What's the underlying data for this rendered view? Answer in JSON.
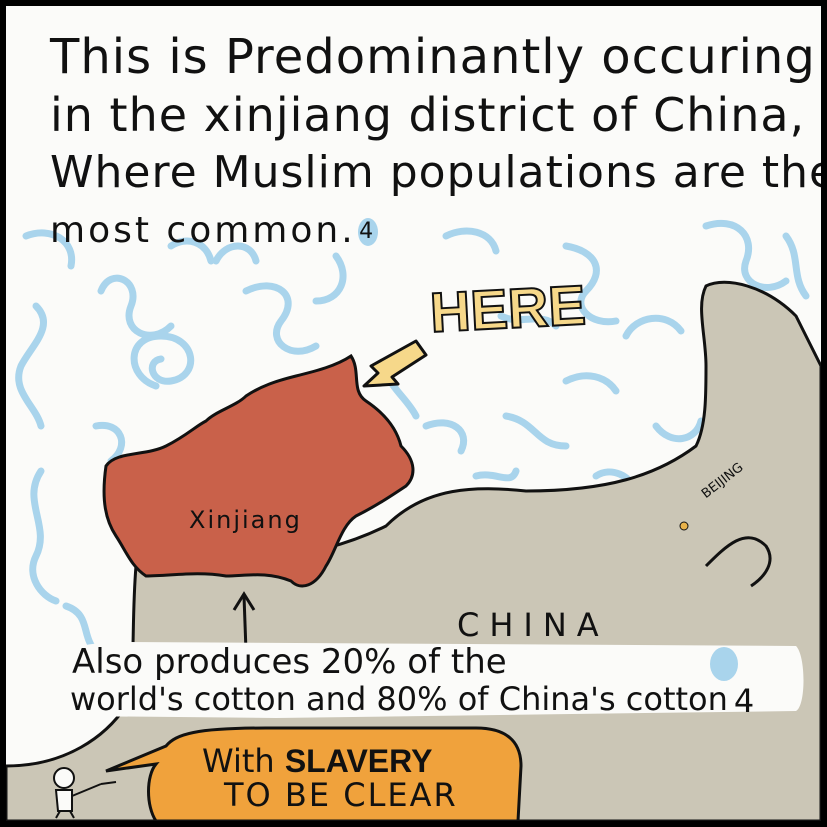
{
  "caption": {
    "line1": "This is Predominantly occuring",
    "line2": "in the xinjiang district of China,",
    "line3": "Where Muslim populations are the",
    "line4": "most common.",
    "footnote": "4"
  },
  "map": {
    "here_label": "HERE",
    "region_label": "Xinjiang",
    "country_label": "CHINA",
    "capital_label": "BEIJING",
    "colors": {
      "region": "#c9614a",
      "country": "#cbc6b6",
      "water_swirls": "#a9d4ec",
      "here_fill": "#f6d88a",
      "banner": "#f0a23c"
    }
  },
  "note": {
    "line1": "Also produces 20% of the",
    "line2": "world's cotton and 80% of China's cotton",
    "footnote": "4"
  },
  "banner": {
    "with": "With",
    "slavery": "SLAVERY",
    "line2": "TO BE CLEAR"
  }
}
